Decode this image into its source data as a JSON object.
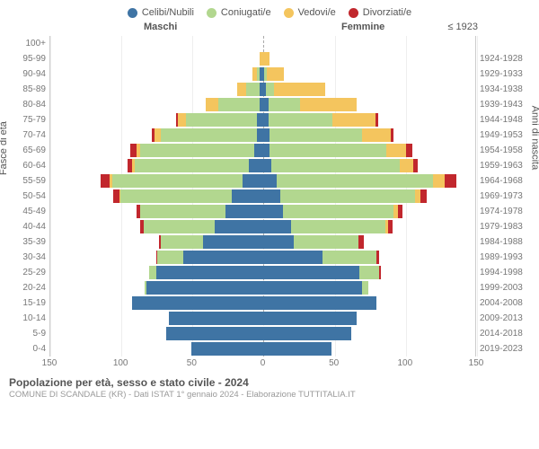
{
  "legend": {
    "items": [
      {
        "label": "Celibi/Nubili",
        "color": "#3f74a4"
      },
      {
        "label": "Coniugati/e",
        "color": "#b2d78f"
      },
      {
        "label": "Vedovi/e",
        "color": "#f4c55e"
      },
      {
        "label": "Divorziati/e",
        "color": "#c1272d"
      }
    ]
  },
  "headers": {
    "male": "Maschi",
    "female": "Femmine",
    "first_year": "≤ 1923"
  },
  "axis": {
    "left_label": "Fasce di età",
    "right_label": "Anni di nascita",
    "xmax": 150,
    "xticks": [
      150,
      100,
      50,
      0,
      50,
      100,
      150
    ]
  },
  "colors": {
    "celibi": "#3f74a4",
    "coniugati": "#b2d78f",
    "vedovi": "#f4c55e",
    "divorziati": "#c1272d",
    "grid": "#eeeeee",
    "centerline": "#aaaaaa",
    "bg": "#ffffff"
  },
  "rows": [
    {
      "age": "100+",
      "yr": "≤ 1923",
      "m": {
        "c": 0,
        "k": 0,
        "v": 0,
        "d": 0
      },
      "f": {
        "c": 0,
        "k": 0,
        "v": 0,
        "d": 0
      }
    },
    {
      "age": "95-99",
      "yr": "1924-1928",
      "m": {
        "c": 0,
        "k": 0,
        "v": 2,
        "d": 0
      },
      "f": {
        "c": 0,
        "k": 0,
        "v": 5,
        "d": 0
      }
    },
    {
      "age": "90-94",
      "yr": "1929-1933",
      "m": {
        "c": 2,
        "k": 2,
        "v": 3,
        "d": 0
      },
      "f": {
        "c": 1,
        "k": 2,
        "v": 12,
        "d": 0
      }
    },
    {
      "age": "85-89",
      "yr": "1934-1938",
      "m": {
        "c": 2,
        "k": 10,
        "v": 6,
        "d": 0
      },
      "f": {
        "c": 2,
        "k": 6,
        "v": 36,
        "d": 0
      }
    },
    {
      "age": "80-84",
      "yr": "1939-1943",
      "m": {
        "c": 2,
        "k": 29,
        "v": 9,
        "d": 0
      },
      "f": {
        "c": 4,
        "k": 22,
        "v": 40,
        "d": 0
      }
    },
    {
      "age": "75-79",
      "yr": "1944-1948",
      "m": {
        "c": 4,
        "k": 50,
        "v": 6,
        "d": 1
      },
      "f": {
        "c": 4,
        "k": 45,
        "v": 30,
        "d": 2
      }
    },
    {
      "age": "70-74",
      "yr": "1949-1953",
      "m": {
        "c": 4,
        "k": 68,
        "v": 4,
        "d": 2
      },
      "f": {
        "c": 5,
        "k": 65,
        "v": 20,
        "d": 2
      }
    },
    {
      "age": "65-69",
      "yr": "1954-1958",
      "m": {
        "c": 6,
        "k": 80,
        "v": 3,
        "d": 4
      },
      "f": {
        "c": 5,
        "k": 82,
        "v": 14,
        "d": 4
      }
    },
    {
      "age": "60-64",
      "yr": "1959-1963",
      "m": {
        "c": 10,
        "k": 80,
        "v": 2,
        "d": 3
      },
      "f": {
        "c": 6,
        "k": 90,
        "v": 10,
        "d": 3
      }
    },
    {
      "age": "55-59",
      "yr": "1964-1968",
      "m": {
        "c": 14,
        "k": 92,
        "v": 2,
        "d": 6
      },
      "f": {
        "c": 10,
        "k": 110,
        "v": 8,
        "d": 8
      }
    },
    {
      "age": "50-54",
      "yr": "1969-1973",
      "m": {
        "c": 22,
        "k": 78,
        "v": 1,
        "d": 4
      },
      "f": {
        "c": 12,
        "k": 95,
        "v": 4,
        "d": 4
      }
    },
    {
      "age": "45-49",
      "yr": "1974-1978",
      "m": {
        "c": 26,
        "k": 60,
        "v": 0,
        "d": 3
      },
      "f": {
        "c": 14,
        "k": 78,
        "v": 3,
        "d": 3
      }
    },
    {
      "age": "40-44",
      "yr": "1979-1983",
      "m": {
        "c": 34,
        "k": 50,
        "v": 0,
        "d": 2
      },
      "f": {
        "c": 20,
        "k": 66,
        "v": 2,
        "d": 3
      }
    },
    {
      "age": "35-39",
      "yr": "1984-1988",
      "m": {
        "c": 42,
        "k": 30,
        "v": 0,
        "d": 1
      },
      "f": {
        "c": 22,
        "k": 45,
        "v": 0,
        "d": 4
      }
    },
    {
      "age": "30-34",
      "yr": "1989-1993",
      "m": {
        "c": 56,
        "k": 18,
        "v": 0,
        "d": 1
      },
      "f": {
        "c": 42,
        "k": 38,
        "v": 0,
        "d": 2
      }
    },
    {
      "age": "25-29",
      "yr": "1994-1998",
      "m": {
        "c": 75,
        "k": 5,
        "v": 0,
        "d": 0
      },
      "f": {
        "c": 68,
        "k": 14,
        "v": 0,
        "d": 1
      }
    },
    {
      "age": "20-24",
      "yr": "1999-2003",
      "m": {
        "c": 82,
        "k": 1,
        "v": 0,
        "d": 0
      },
      "f": {
        "c": 70,
        "k": 4,
        "v": 0,
        "d": 0
      }
    },
    {
      "age": "15-19",
      "yr": "2004-2008",
      "m": {
        "c": 92,
        "k": 0,
        "v": 0,
        "d": 0
      },
      "f": {
        "c": 80,
        "k": 0,
        "v": 0,
        "d": 0
      }
    },
    {
      "age": "10-14",
      "yr": "2009-2013",
      "m": {
        "c": 66,
        "k": 0,
        "v": 0,
        "d": 0
      },
      "f": {
        "c": 66,
        "k": 0,
        "v": 0,
        "d": 0
      }
    },
    {
      "age": "5-9",
      "yr": "2014-2018",
      "m": {
        "c": 68,
        "k": 0,
        "v": 0,
        "d": 0
      },
      "f": {
        "c": 62,
        "k": 0,
        "v": 0,
        "d": 0
      }
    },
    {
      "age": "0-4",
      "yr": "2019-2023",
      "m": {
        "c": 50,
        "k": 0,
        "v": 0,
        "d": 0
      },
      "f": {
        "c": 48,
        "k": 0,
        "v": 0,
        "d": 0
      }
    }
  ],
  "footer": {
    "title": "Popolazione per età, sesso e stato civile - 2024",
    "sub": "COMUNE DI SCANDALE (KR) - Dati ISTAT 1° gennaio 2024 - Elaborazione TUTTITALIA.IT"
  }
}
